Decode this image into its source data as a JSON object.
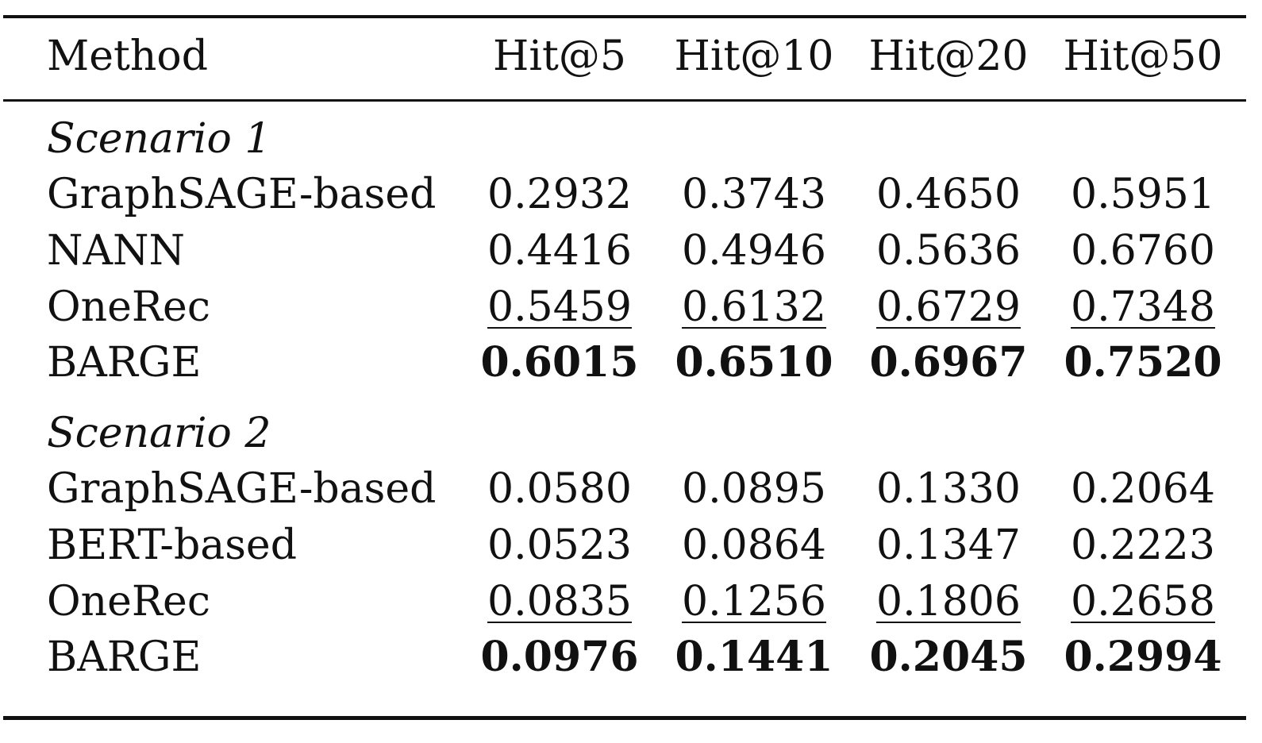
{
  "table": {
    "header": {
      "method": "Method",
      "columns": [
        "Hit@5",
        "Hit@10",
        "Hit@20",
        "Hit@50"
      ]
    },
    "sections": [
      {
        "label": "Scenario 1",
        "rows": [
          {
            "method": "GraphSAGE-based",
            "values": [
              "0.2932",
              "0.3743",
              "0.4650",
              "0.5951"
            ],
            "style": "normal"
          },
          {
            "method": "NANN",
            "values": [
              "0.4416",
              "0.4946",
              "0.5636",
              "0.6760"
            ],
            "style": "normal"
          },
          {
            "method": "OneRec",
            "values": [
              "0.5459",
              "0.6132",
              "0.6729",
              "0.7348"
            ],
            "style": "underline"
          },
          {
            "method": "BARGE",
            "values": [
              "0.6015",
              "0.6510",
              "0.6967",
              "0.7520"
            ],
            "style": "bold"
          }
        ]
      },
      {
        "label": "Scenario 2",
        "rows": [
          {
            "method": "GraphSAGE-based",
            "values": [
              "0.0580",
              "0.0895",
              "0.1330",
              "0.2064"
            ],
            "style": "normal"
          },
          {
            "method": "BERT-based",
            "values": [
              "0.0523",
              "0.0864",
              "0.1347",
              "0.2223"
            ],
            "style": "normal"
          },
          {
            "method": "OneRec",
            "values": [
              "0.0835",
              "0.1256",
              "0.1806",
              "0.2658"
            ],
            "style": "underline"
          },
          {
            "method": "BARGE",
            "values": [
              "0.0976",
              "0.1441",
              "0.2045",
              "0.2994"
            ],
            "style": "bold"
          }
        ]
      }
    ]
  }
}
